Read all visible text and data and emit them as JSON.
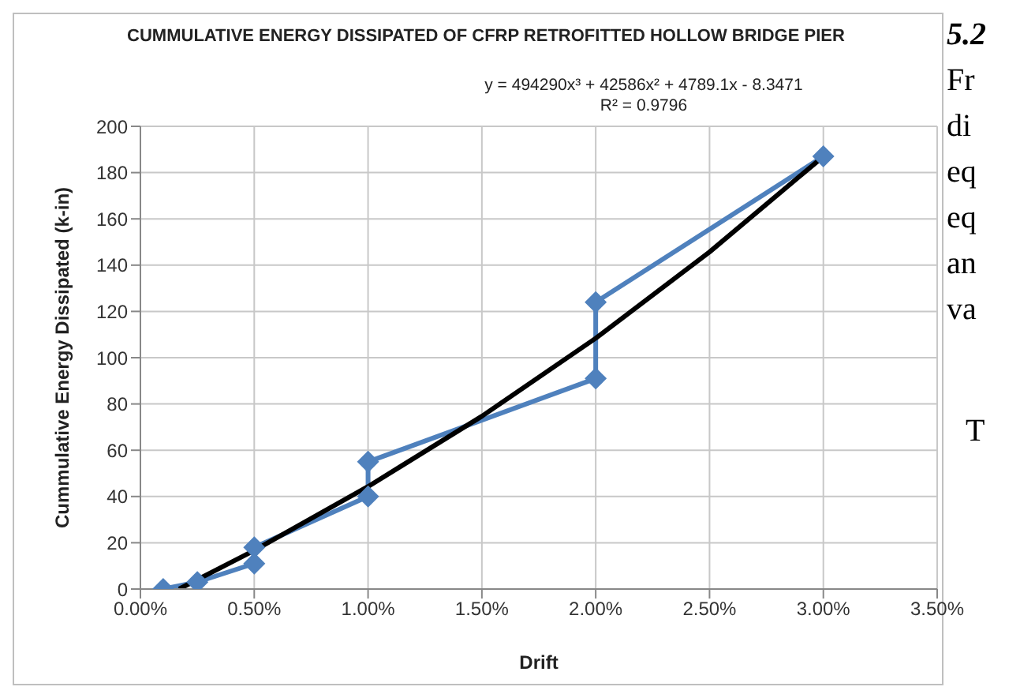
{
  "chart_data": {
    "type": "line",
    "title": "CUMMULATIVE ENERGY DISSIPATED OF CFRP RETROFITTED HOLLOW BRIDGE PIER",
    "xlabel": "Drift",
    "ylabel": "Cummulative Energy Dissipated (k-in)",
    "series": [
      {
        "type": "line",
        "color": "#4f81bd",
        "marker": "diamond",
        "x": [
          0.001,
          0.0025,
          0.005,
          0.005,
          0.01,
          0.01,
          0.02,
          0.02,
          0.03
        ],
        "values": [
          0,
          3,
          11,
          18,
          40,
          55,
          91,
          124,
          187
        ]
      },
      {
        "type": "line",
        "color": "#000000",
        "marker": "none",
        "x": [
          0.0017,
          0.005,
          0.01,
          0.015,
          0.02,
          0.025,
          0.03
        ],
        "values": [
          0,
          16.7,
          44.3,
          74.7,
          108.4,
          145.7,
          187
        ]
      }
    ],
    "xlim": [
      0,
      0.035
    ],
    "xticks": [
      {
        "value": 0,
        "label": "0.00%"
      },
      {
        "value": 0.005,
        "label": "0.50%"
      },
      {
        "value": 0.01,
        "label": "1.00%"
      },
      {
        "value": 0.015,
        "label": "1.50%"
      },
      {
        "value": 0.02,
        "label": "2.00%"
      },
      {
        "value": 0.025,
        "label": "2.50%"
      },
      {
        "value": 0.03,
        "label": "3.00%"
      },
      {
        "value": 0.035,
        "label": "3.50%"
      }
    ],
    "ylim": [
      0,
      200
    ],
    "yticks": [
      0,
      20,
      40,
      60,
      80,
      100,
      120,
      140,
      160,
      180,
      200
    ],
    "grid": true,
    "legend": false,
    "annotations": [
      "y = 494290x³ + 42586x² + 4789.1x - 8.3471",
      "R² = 0.9796",
      "5.2",
      "Fr",
      "di",
      "eq",
      "eq",
      "an",
      "va",
      "T"
    ]
  }
}
